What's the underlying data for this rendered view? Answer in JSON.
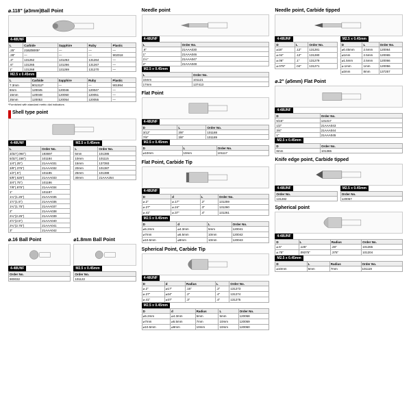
{
  "sec_ballpoint": {
    "title": "⌀.118\" (⌀3mm)Ball Point",
    "thread1": "4-48UNF",
    "cols1": [
      "L",
      "Carbide",
      "Sapphire",
      "Ruby",
      "Plastic"
    ],
    "rows1": [
      [
        ".25\"",
        "21BZB005*",
        "—",
        "—",
        "—"
      ],
      [
        ".28\"",
        "—",
        "—",
        "—",
        "902018"
      ],
      [
        ".3\"",
        "131262",
        "131263",
        "131264",
        "—"
      ],
      [
        ".6\"",
        "131265",
        "131266",
        "131267",
        "—"
      ],
      [
        "1\"",
        "131268",
        "131269",
        "131270",
        "—"
      ]
    ],
    "thread2": "M2.5 x 0.45mm",
    "cols2": [
      "L",
      "Carbide",
      "Sapphire",
      "Ruby",
      "Plastic"
    ],
    "rows2": [
      [
        "7.3mm",
        "901312*",
        "—",
        "—",
        "901994"
      ],
      [
        "8mm",
        "120045",
        "120046",
        "120047",
        "—"
      ],
      [
        "15mm",
        "120048",
        "120050",
        "120051",
        "—"
      ],
      [
        "25mm",
        "120053",
        "120054",
        "120055",
        "—"
      ]
    ],
    "note": "*Furnished with standard metric dial indicators"
  },
  "sec_shell": {
    "title": "Shell type point",
    "thread1": "4-48UNF",
    "cols1": [
      "L",
      "Order No."
    ],
    "rows1": [
      [
        "3/32\"(.094\")",
        "193697"
      ],
      [
        "5/32\"(.156\")",
        "101184"
      ],
      [
        "1/4\"(.25\")",
        "21AAA031"
      ],
      [
        "3/8\"(.375\")",
        "21AAA032"
      ],
      [
        "1/2\"(.5\")",
        "101185"
      ],
      [
        "5/8\"(.625\")",
        "21AAA033"
      ],
      [
        "3/4\"(.75\")",
        "101186"
      ],
      [
        "7/8\"(.875\")",
        "21AAA034"
      ],
      [
        "1\"",
        "101187"
      ],
      [
        "1¼\"(1.25\")",
        "21AAA035"
      ],
      [
        "1½\"(1.5\")",
        "21AAA036"
      ],
      [
        "1¾\"(1.75\")",
        "21AAA037"
      ],
      [
        "2\"",
        "21AAA038"
      ],
      [
        "2¼\"(2.25\")",
        "21AAA039"
      ],
      [
        "2½\"(2.5\")",
        "21AAA040"
      ],
      [
        "2¾\"(2.75\")",
        "21AAA041"
      ],
      [
        "3\"",
        "21AAA042"
      ]
    ],
    "thread2": "M2.5 x 0.45mm",
    "cols2": [
      "L",
      "Order No."
    ],
    "rows2": [
      [
        "5mm",
        "101386"
      ],
      [
        "10mm",
        "101115"
      ],
      [
        "15mm",
        "137393"
      ],
      [
        "20mm",
        "101387"
      ],
      [
        "25mm",
        "101388"
      ],
      [
        "30mm",
        "21AAA254"
      ]
    ]
  },
  "sec_16ball": {
    "title": "⌀.16 Ball Point",
    "thread": "4-48UNF",
    "cols": [
      "Order No."
    ],
    "rows": [
      [
        "900032"
      ]
    ]
  },
  "sec_18ball": {
    "title": "⌀1.8mm Ball Point",
    "thread": "M2.5 x 0.45mm",
    "cols": [
      "Order No."
    ],
    "rows": [
      [
        "101122"
      ]
    ]
  },
  "sec_needle": {
    "title": "Needle point",
    "thread1": "4-48UNF",
    "cols1": [
      "L",
      "Order No."
    ],
    "rows1": [
      [
        ".6\"",
        "21AAA030"
      ],
      [
        "1\"",
        "21AAA046"
      ],
      [
        "1½\"",
        "21AAA047"
      ],
      [
        "2\"",
        "21AAA048"
      ]
    ],
    "thread2": "M2.5 x 0.45mm",
    "cols2": [
      "L",
      "Order No."
    ],
    "rows2": [
      [
        "15mm",
        "101121"
      ],
      [
        "17mm",
        "137413"
      ]
    ]
  },
  "sec_flat": {
    "title": "Flat Point",
    "thread1": "4-48UNF",
    "cols1": [
      "D",
      "L",
      "Order No."
    ],
    "rows1": [
      [
        "3/12\"",
        "3/8\"",
        "101188"
      ],
      [
        "7/8\"",
        "3/8\"",
        "101189"
      ]
    ],
    "thread2": "M2.5 x 0.45mm",
    "cols2": [
      "D",
      "L",
      "Order No."
    ],
    "rows2": [
      [
        "⌀10mm",
        "10mm",
        "101117"
      ]
    ]
  },
  "sec_flatcarbide": {
    "title": "Flat Point, Carbide Tip",
    "thread1": "4-48UNF",
    "cols1": [
      "D",
      "d",
      "L",
      "Order No."
    ],
    "rows1": [
      [
        "⌀.2\"",
        "⌀.17\"",
        ".2\"",
        "131259"
      ],
      [
        "⌀.27\"",
        "⌀.24\"",
        ".3\"",
        "131260"
      ],
      [
        "⌀.41\"",
        "⌀.37\"",
        ".4\"",
        "131261"
      ]
    ],
    "thread2": "M2.5 x 0.45mm",
    "cols2": [
      "D",
      "d",
      "L",
      "Order No."
    ],
    "rows2": [
      [
        "⌀5.2mm",
        "⌀4.3mm",
        "5mm",
        "120041"
      ],
      [
        "⌀7mm",
        "⌀5.5mm",
        "10mm",
        "120042"
      ],
      [
        "⌀10.5mm",
        "⌀9mm",
        "10mm",
        "120043"
      ]
    ]
  },
  "sec_sphericalcarbide": {
    "title": "Spherical Point, Carbide Tip",
    "thread1": "4-48UNF",
    "cols1": [
      "D",
      "d",
      "Radius",
      "L",
      "Order No."
    ],
    "rows1": [
      [
        "⌀.2\"",
        "⌀17\"",
        ".16\"",
        ".2\"",
        "131273"
      ],
      [
        "⌀.27\"",
        "⌀24\"",
        ".2\"",
        ".4\"",
        "131274"
      ],
      [
        "⌀.41\"",
        "⌀37\"",
        ".3\"",
        ".4\"",
        "131275"
      ]
    ],
    "thread2": "M2.5 x 0.45mm",
    "cols2": [
      "D",
      "d",
      "Radius",
      "L",
      "Order No."
    ],
    "rows2": [
      [
        "⌀5.2mm",
        "⌀4.3mm",
        "5mm",
        "5mm",
        "120058"
      ],
      [
        "⌀7mm",
        "⌀5.5mm",
        "7mm",
        "10mm",
        "120059"
      ],
      [
        "⌀10.5mm",
        "⌀9mm",
        "10mm",
        "10mm",
        "120060"
      ]
    ]
  },
  "sec_needlecarbide": {
    "title": "Needle point, Carbide tipped",
    "thread1": "4-48UNF",
    "cols1": [
      "D",
      "L",
      "Order No."
    ],
    "rows1": [
      [
        "⌀18\"",
        ".12\"",
        "131281"
      ],
      [
        "⌀.04\"",
        ".12\"",
        "131280"
      ],
      [
        "⌀.06\"",
        ".1\"",
        "131279"
      ],
      [
        "⌀.078\"",
        ".04\"",
        "131271"
      ]
    ],
    "thread2": "M2.5 x 0.45mm",
    "cols2": [
      "D",
      "L",
      "Order No."
    ],
    "rows2": [
      [
        "⌀0.45mm",
        "2.5mm",
        "120064"
      ],
      [
        "⌀1mm",
        "2.5mm",
        "120065"
      ],
      [
        "⌀1.5mm",
        "2.5mm",
        "120066"
      ],
      [
        "⌀.1mm",
        "1mm",
        "120056"
      ],
      [
        "⌀2mm",
        "8mm",
        "137257"
      ]
    ]
  },
  "sec_5flat": {
    "title": "⌀.2\" (⌀5mm) Flat Point",
    "thread1": "4-48UNF",
    "cols1": [
      "D",
      "Order No."
    ],
    "rows1": [
      [
        "5/16\"",
        "131317"
      ],
      [
        "1/2\"",
        "21AAA043"
      ],
      [
        "3/4\"",
        "21AAA044"
      ],
      [
        "1\"",
        "21AAA045"
      ]
    ],
    "thread2": "M2.5 x 0.45mm",
    "cols2": [
      "D",
      "Order No."
    ],
    "rows2": [
      [
        "8mm",
        "101365"
      ]
    ]
  },
  "sec_knife": {
    "title": "Knife edge point, Carbide tipped",
    "thread1": "4-48UNF",
    "cols1": [
      "Order No."
    ],
    "rows1": [
      [
        "131282"
      ]
    ],
    "thread2": "M2.5 x 0.45mm",
    "cols2": [
      "Order No."
    ],
    "rows2": [
      [
        "120067"
      ]
    ]
  },
  "sec_spherical": {
    "title": "Spherical point",
    "thread1": "4-48UNF",
    "cols1": [
      "D",
      "L",
      "Radius",
      "Order No."
    ],
    "rows1": [
      [
        "⌀.5\"",
        ".125\"",
        ".28\"",
        "101265"
      ],
      [
        "⌀.75\"",
        ".09375\"",
        ".375\"",
        "101204"
      ]
    ],
    "thread2": "M2.5 x 0.45mm",
    "cols2": [
      "D",
      "L",
      "Radius",
      "Order No."
    ],
    "rows2": [
      [
        "⌀10mm",
        "5mm",
        "7mm",
        "101119"
      ]
    ]
  }
}
